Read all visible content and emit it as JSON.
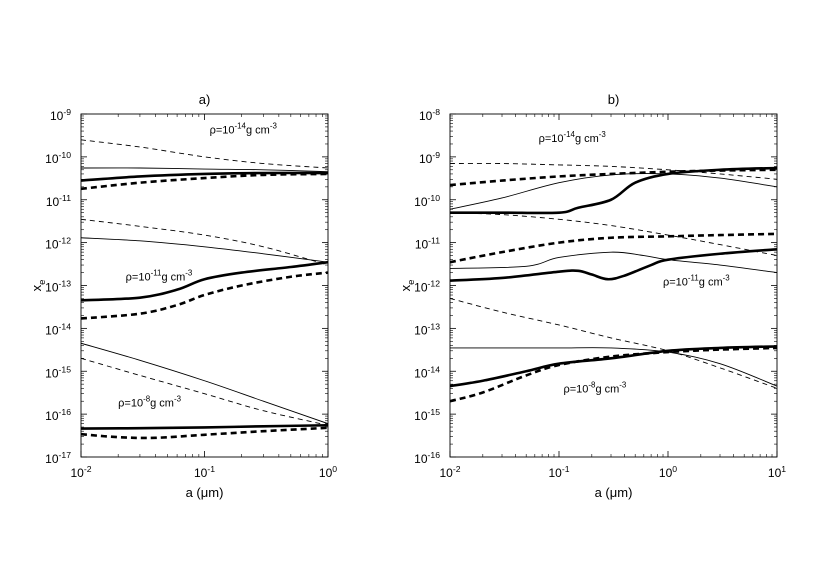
{
  "figure": {
    "description_free": true
  },
  "chart_data": [
    {
      "type": "line",
      "title": "a)",
      "xlabel": "a (μm)",
      "ylabel_main": "x",
      "ylabel_sub": "e",
      "xscale": "log",
      "yscale": "log",
      "xlim": [
        0.01,
        1
      ],
      "ylim": [
        1e-17,
        1e-09
      ],
      "xticks": [
        {
          "base": "10",
          "exp": "-2"
        },
        {
          "base": "10",
          "exp": "-1"
        },
        {
          "base": "10",
          "exp": "0"
        }
      ],
      "yticks": [
        {
          "base": "10",
          "exp": "-17"
        },
        {
          "base": "10",
          "exp": "-16"
        },
        {
          "base": "10",
          "exp": "-15"
        },
        {
          "base": "10",
          "exp": "-14"
        },
        {
          "base": "10",
          "exp": "-13"
        },
        {
          "base": "10",
          "exp": "-12"
        },
        {
          "base": "10",
          "exp": "-11"
        },
        {
          "base": "10",
          "exp": "-10"
        },
        {
          "base": "10",
          "exp": "-9"
        }
      ],
      "annotations": [
        {
          "pre": "ρ=10",
          "exp": "-14",
          "post": "g cm",
          "exp2": "-3",
          "at_x": 0.11,
          "at_y": 3.5e-10
        },
        {
          "pre": "ρ=10",
          "exp": "-11",
          "post": "g cm",
          "exp2": "-3",
          "at_x": 0.023,
          "at_y": 1.3e-13
        },
        {
          "pre": "ρ=10",
          "exp": "-8",
          "post": "g cm",
          "exp2": "-3",
          "at_x": 0.02,
          "at_y": 1.5e-16
        }
      ],
      "series": [
        {
          "name": "rho1e-14 thin solid",
          "style": "thin-solid",
          "x": [
            0.01,
            0.03,
            0.1,
            0.3,
            1
          ],
          "y": [
            5.5e-11,
            5.5e-11,
            5.2e-11,
            5e-11,
            4.5e-11
          ]
        },
        {
          "name": "rho1e-14 thin dashed",
          "style": "thin-dashed",
          "x": [
            0.01,
            0.03,
            0.1,
            0.3,
            1
          ],
          "y": [
            2.5e-10,
            1.7e-10,
            1e-10,
            7e-11,
            5.5e-11
          ]
        },
        {
          "name": "rho1e-14 thick solid",
          "style": "thick-solid",
          "x": [
            0.01,
            0.03,
            0.1,
            0.3,
            1
          ],
          "y": [
            2.8e-11,
            3.5e-11,
            4e-11,
            4.2e-11,
            4.2e-11
          ]
        },
        {
          "name": "rho1e-14 thick dashed",
          "style": "thick-dashed",
          "x": [
            0.01,
            0.03,
            0.1,
            0.3,
            1
          ],
          "y": [
            1.8e-11,
            2.5e-11,
            3.2e-11,
            3.8e-11,
            4e-11
          ]
        },
        {
          "name": "rho1e-11 thin solid",
          "style": "thin-solid",
          "x": [
            0.01,
            0.03,
            0.1,
            0.3,
            1
          ],
          "y": [
            1.3e-12,
            1.1e-12,
            8e-13,
            5.5e-13,
            3.5e-13
          ]
        },
        {
          "name": "rho1e-11 thin dashed",
          "style": "thin-dashed",
          "x": [
            0.01,
            0.03,
            0.1,
            0.3,
            1
          ],
          "y": [
            3.5e-12,
            2.4e-12,
            1.5e-12,
            8e-13,
            3e-13
          ]
        },
        {
          "name": "rho1e-11 thick solid",
          "style": "thick-solid",
          "x": [
            0.01,
            0.03,
            0.06,
            0.1,
            0.2,
            0.5,
            1
          ],
          "y": [
            4.5e-14,
            5.2e-14,
            8e-14,
            1.4e-13,
            2e-13,
            2.7e-13,
            3.5e-13
          ]
        },
        {
          "name": "rho1e-11 thick dashed",
          "style": "thick-dashed",
          "x": [
            0.01,
            0.03,
            0.06,
            0.1,
            0.2,
            0.5,
            1
          ],
          "y": [
            1.7e-14,
            2.2e-14,
            3.5e-14,
            6e-14,
            1e-13,
            1.6e-13,
            2e-13
          ]
        },
        {
          "name": "rho1e-8 thin solid",
          "style": "thin-solid",
          "x": [
            0.01,
            0.03,
            0.1,
            0.3,
            1
          ],
          "y": [
            4.5e-15,
            1.8e-15,
            6e-16,
            2e-16,
            6e-17
          ]
        },
        {
          "name": "rho1e-8 thin dashed",
          "style": "thin-dashed",
          "x": [
            0.01,
            0.03,
            0.1,
            0.3,
            1
          ],
          "y": [
            2e-15,
            8e-16,
            3e-16,
            1.2e-16,
            5.5e-17
          ]
        },
        {
          "name": "rho1e-8 thick solid",
          "style": "thick-solid",
          "x": [
            0.01,
            0.03,
            0.1,
            0.3,
            1
          ],
          "y": [
            4.6e-17,
            4.7e-17,
            4.9e-17,
            5.2e-17,
            5.5e-17
          ]
        },
        {
          "name": "rho1e-8 thick dashed",
          "style": "thick-dashed",
          "x": [
            0.01,
            0.02,
            0.04,
            0.1,
            0.3,
            1
          ],
          "y": [
            3.4e-17,
            2.9e-17,
            2.8e-17,
            3.3e-17,
            4e-17,
            4.8e-17
          ]
        }
      ]
    },
    {
      "type": "line",
      "title": "b)",
      "xlabel": "a (μm)",
      "ylabel_main": "x",
      "ylabel_sub": "e",
      "xscale": "log",
      "yscale": "log",
      "xlim": [
        0.01,
        10
      ],
      "ylim": [
        1e-16,
        1e-08
      ],
      "xticks": [
        {
          "base": "10",
          "exp": "-2"
        },
        {
          "base": "10",
          "exp": "-1"
        },
        {
          "base": "10",
          "exp": "0"
        },
        {
          "base": "10",
          "exp": "1"
        }
      ],
      "yticks": [
        {
          "base": "10",
          "exp": "-16"
        },
        {
          "base": "10",
          "exp": "-15"
        },
        {
          "base": "10",
          "exp": "-14"
        },
        {
          "base": "10",
          "exp": "-13"
        },
        {
          "base": "10",
          "exp": "-12"
        },
        {
          "base": "10",
          "exp": "-11"
        },
        {
          "base": "10",
          "exp": "-10"
        },
        {
          "base": "10",
          "exp": "-9"
        },
        {
          "base": "10",
          "exp": "-8"
        }
      ],
      "annotations": [
        {
          "pre": "ρ=10",
          "exp": "-14",
          "post": "g cm",
          "exp2": "-3",
          "at_x": 0.065,
          "at_y": 2.2e-09
        },
        {
          "pre": "ρ=10",
          "exp": "-11",
          "post": "g cm",
          "exp2": "-3",
          "at_x": 0.9,
          "at_y": 1e-12
        },
        {
          "pre": "ρ=10",
          "exp": "-8",
          "post": "g cm",
          "exp2": "-3",
          "at_x": 0.11,
          "at_y": 3.2e-15
        }
      ],
      "series": [
        {
          "name": "rho1e-14 thin solid",
          "style": "thin-solid",
          "x": [
            0.01,
            0.03,
            0.1,
            0.3,
            1,
            3,
            10
          ],
          "y": [
            6e-11,
            1.1e-10,
            2.5e-10,
            3.8e-10,
            4e-10,
            3.2e-10,
            2e-10
          ]
        },
        {
          "name": "rho1e-14 thin dashed",
          "style": "thin-dashed",
          "x": [
            0.01,
            0.03,
            0.1,
            0.3,
            1,
            3,
            10
          ],
          "y": [
            7e-10,
            7e-10,
            6.5e-10,
            6e-10,
            5e-10,
            4e-10,
            3e-10
          ]
        },
        {
          "name": "rho1e-14 thick solid",
          "style": "thick-solid",
          "x": [
            0.01,
            0.03,
            0.1,
            0.15,
            0.3,
            0.5,
            1,
            3,
            10
          ],
          "y": [
            5e-11,
            5e-11,
            5e-11,
            6.5e-11,
            1e-10,
            2.5e-10,
            4e-10,
            5e-10,
            5.5e-10
          ]
        },
        {
          "name": "rho1e-14 thick dashed",
          "style": "thick-dashed",
          "x": [
            0.01,
            0.03,
            0.1,
            0.3,
            1,
            3,
            10
          ],
          "y": [
            2.2e-10,
            2.8e-10,
            3.5e-10,
            4e-10,
            4.5e-10,
            4.8e-10,
            5e-10
          ]
        },
        {
          "name": "rho1e-11 thin solid",
          "style": "thin-solid",
          "x": [
            0.01,
            0.05,
            0.1,
            0.3,
            0.6,
            1,
            3,
            10
          ],
          "y": [
            2.5e-12,
            2.8e-12,
            4.5e-12,
            6e-12,
            5e-12,
            4e-12,
            3e-12,
            2e-12
          ]
        },
        {
          "name": "rho1e-11 thin dashed",
          "style": "thin-dashed",
          "x": [
            0.01,
            0.03,
            0.1,
            0.3,
            1,
            3,
            10
          ],
          "y": [
            5e-11,
            4.5e-11,
            3.5e-11,
            2.5e-11,
            1.5e-11,
            9e-12,
            5e-12
          ]
        },
        {
          "name": "rho1e-11 thick solid",
          "style": "thick-solid",
          "x": [
            0.01,
            0.03,
            0.1,
            0.15,
            0.2,
            0.28,
            0.4,
            0.7,
            1,
            3,
            10
          ],
          "y": [
            1.3e-12,
            1.5e-12,
            2.1e-12,
            2.2e-12,
            1.8e-12,
            1.4e-12,
            1.7e-12,
            3e-12,
            4e-12,
            5.5e-12,
            7e-12
          ]
        },
        {
          "name": "rho1e-11 thick dashed",
          "style": "thick-dashed",
          "x": [
            0.01,
            0.03,
            0.1,
            0.3,
            1,
            3,
            10
          ],
          "y": [
            3.5e-12,
            6e-12,
            1e-11,
            1.3e-11,
            1.4e-11,
            1.5e-11,
            1.6e-11
          ]
        },
        {
          "name": "rho1e-8 thin solid",
          "style": "thin-solid",
          "x": [
            0.01,
            0.03,
            0.1,
            0.3,
            1,
            3,
            10
          ],
          "y": [
            3.5e-14,
            3.5e-14,
            3.5e-14,
            3.5e-14,
            2.8e-14,
            1.5e-14,
            4.5e-15
          ]
        },
        {
          "name": "rho1e-8 thin dashed",
          "style": "thin-dashed",
          "x": [
            0.01,
            0.03,
            0.1,
            0.3,
            1,
            3,
            10
          ],
          "y": [
            5e-13,
            2.4e-13,
            1.2e-13,
            6e-14,
            3e-14,
            1.2e-14,
            4e-15
          ]
        },
        {
          "name": "rho1e-8 thick solid",
          "style": "thick-solid",
          "x": [
            0.01,
            0.02,
            0.05,
            0.1,
            0.3,
            1,
            3,
            10
          ],
          "y": [
            4.5e-15,
            6e-15,
            1e-14,
            1.5e-14,
            2e-14,
            3e-14,
            3.5e-14,
            3.8e-14
          ]
        },
        {
          "name": "rho1e-8 thick dashed",
          "style": "thick-dashed",
          "x": [
            0.01,
            0.02,
            0.05,
            0.1,
            0.3,
            1,
            3,
            10
          ],
          "y": [
            2e-15,
            3.2e-15,
            8e-15,
            1.4e-14,
            2.2e-14,
            2.8e-14,
            3.2e-14,
            3.5e-14
          ]
        }
      ]
    }
  ]
}
